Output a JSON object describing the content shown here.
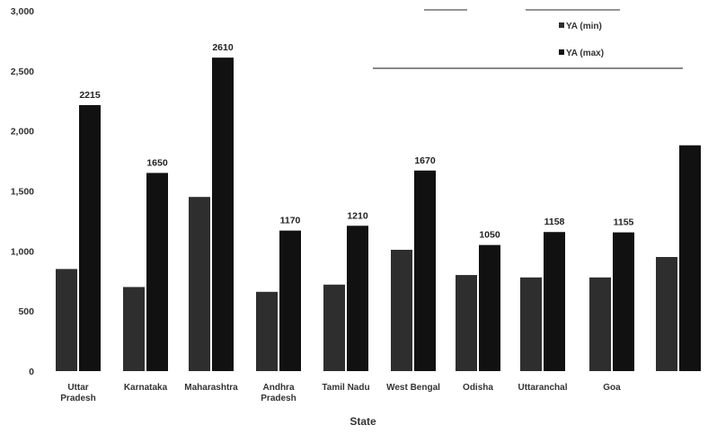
{
  "chart_data": {
    "type": "bar",
    "title": "",
    "xlabel": "State",
    "ylabel": "",
    "ylim": [
      0,
      3000
    ],
    "yticks": [
      "0",
      "500",
      "1,000",
      "1,500",
      "2,000",
      "2,500",
      "3,000"
    ],
    "ytick_values": [
      0,
      500,
      1000,
      1500,
      2000,
      2500,
      3000
    ],
    "grid": false,
    "legend_position": "top-right",
    "categories": [
      "Uttar Pradesh",
      "Karnataka",
      "Maharashtra",
      "Andhra Pradesh",
      "Tamil Nadu",
      "West Bengal",
      "Odisha",
      "Uttaranchal",
      "Goa",
      ""
    ],
    "series": [
      {
        "name": "YA (min)",
        "values": [
          850,
          700,
          1450,
          660,
          720,
          1010,
          800,
          780,
          780,
          950
        ],
        "color": "#2e2e2e"
      },
      {
        "name": "YA (max)",
        "values": [
          2215,
          1650,
          2610,
          1170,
          1210,
          1670,
          1050,
          1158,
          1155,
          1880
        ],
        "color": "#111111"
      }
    ],
    "max_labels": [
      "2215",
      "1650",
      "2610",
      "1170",
      "1210",
      "1670",
      "1050",
      "1158",
      "1155",
      ""
    ]
  }
}
